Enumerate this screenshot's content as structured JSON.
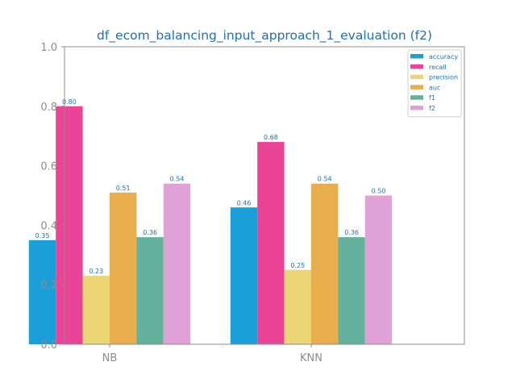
{
  "chart_data": {
    "type": "bar",
    "title": "df_ecom_balancing_input_approach_1_evaluation (f2)",
    "xlabel": "",
    "ylabel": "",
    "categories": [
      "NB",
      "KNN"
    ],
    "ylim": [
      0.0,
      1.0
    ],
    "yticks": [
      "0.0",
      "0.2",
      "0.4",
      "0.6",
      "0.8",
      "1.0"
    ],
    "grid": false,
    "legend_position": "top-right",
    "series": [
      {
        "name": "accuracy",
        "color": "#1a9fd8",
        "values": [
          0.35,
          0.46
        ],
        "labels": [
          "0.35",
          "0.46"
        ]
      },
      {
        "name": "recall",
        "color": "#ea4497",
        "values": [
          0.8,
          0.68
        ],
        "labels": [
          "0.80",
          "0.68"
        ]
      },
      {
        "name": "precision",
        "color": "#ebd574",
        "values": [
          0.23,
          0.25
        ],
        "labels": [
          "0.23",
          "0.25"
        ]
      },
      {
        "name": "auc",
        "color": "#e8ad4d",
        "values": [
          0.51,
          0.54
        ],
        "labels": [
          "0.51",
          "0.54"
        ]
      },
      {
        "name": "f1",
        "color": "#63b19c",
        "values": [
          0.36,
          0.36
        ],
        "labels": [
          "0.36",
          "0.36"
        ]
      },
      {
        "name": "f2",
        "color": "#e0a1d6",
        "values": [
          0.54,
          0.5
        ],
        "labels": [
          "0.54",
          "0.50"
        ]
      }
    ]
  }
}
